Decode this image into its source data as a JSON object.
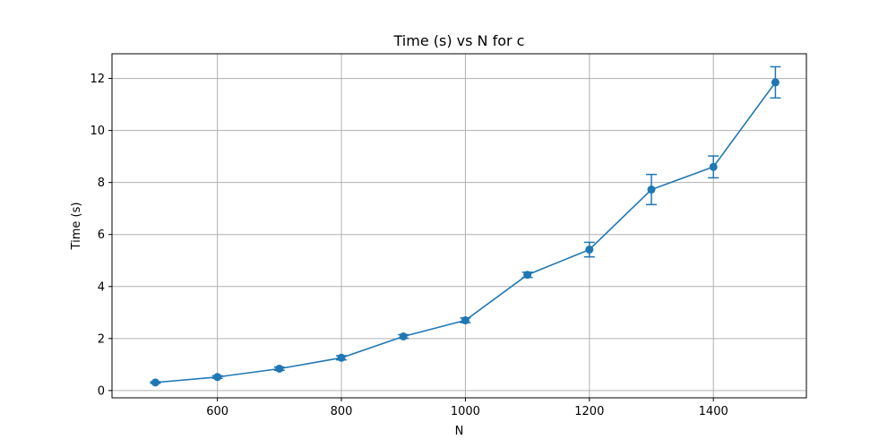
{
  "chart_data": {
    "type": "line",
    "title": "Time (s) vs N for c",
    "xlabel": "N",
    "ylabel": "Time (s)",
    "xlim": [
      430,
      1550
    ],
    "ylim": [
      -0.28,
      12.95
    ],
    "xticks": [
      600,
      800,
      1000,
      1200,
      1400
    ],
    "yticks": [
      0,
      2,
      4,
      6,
      8,
      10,
      12
    ],
    "grid": true,
    "series_color": "#1f77b4",
    "series": [
      {
        "x": [
          500,
          600,
          700,
          800,
          900,
          1000,
          1100,
          1200,
          1300,
          1400,
          1500
        ],
        "y": [
          0.31,
          0.52,
          0.84,
          1.26,
          2.08,
          2.7,
          4.45,
          5.42,
          7.73,
          8.6,
          11.85
        ],
        "error": [
          0.03,
          0.05,
          0.06,
          0.08,
          0.07,
          0.09,
          0.1,
          0.28,
          0.58,
          0.42,
          0.6
        ]
      }
    ]
  }
}
